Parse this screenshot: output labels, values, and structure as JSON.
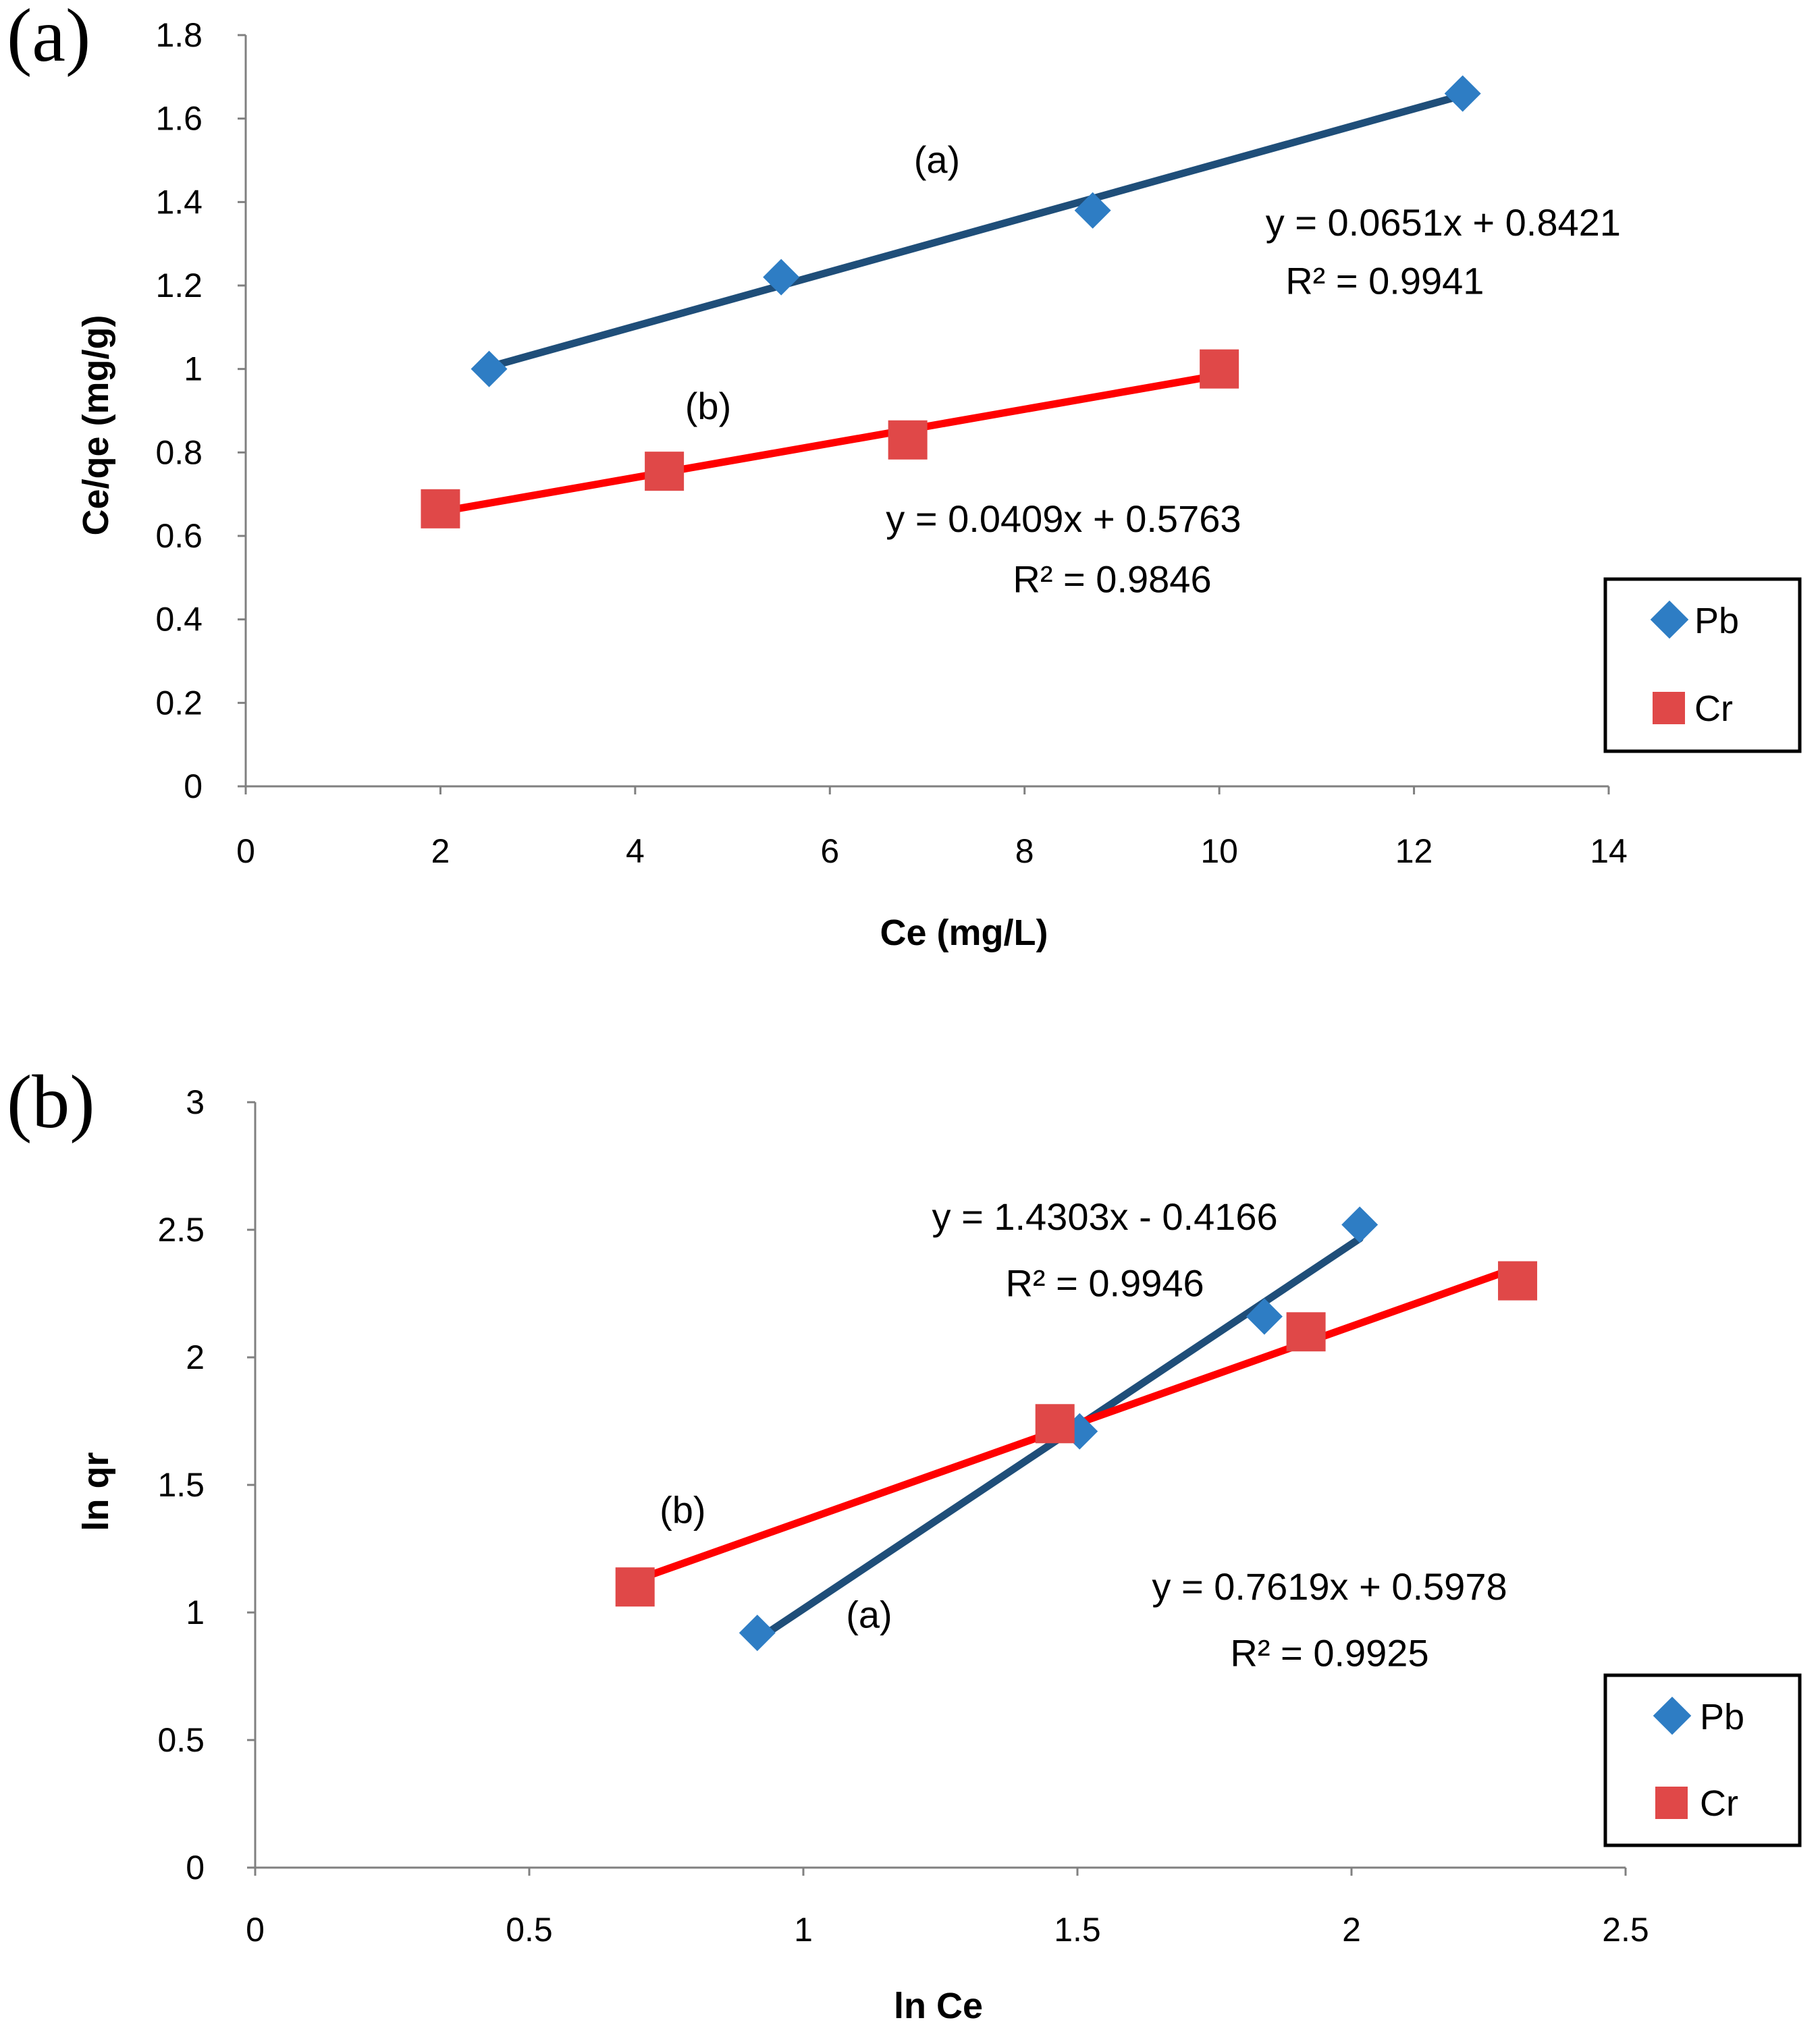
{
  "chart_data": [
    {
      "type": "scatter",
      "panel_label": "(a)",
      "xlabel": "Ce (mg/L)",
      "ylabel": "Ce/qe (mg/g)",
      "xlim": [
        0,
        14
      ],
      "ylim": [
        0,
        1.8
      ],
      "x_ticks": [
        "0",
        "2",
        "4",
        "6",
        "8",
        "10",
        "12",
        "14"
      ],
      "y_ticks": [
        "0",
        "0.2",
        "0.4",
        "0.6",
        "0.8",
        "1",
        "1.2",
        "1.4",
        "1.6",
        "1.8"
      ],
      "legend_position": "right",
      "series": [
        {
          "name": "Pb",
          "marker": "diamond",
          "color": "#2e7dc4",
          "line_color": "#1f4e79",
          "x": [
            2.5,
            5.5,
            8.7,
            12.5
          ],
          "y": [
            1.0,
            1.22,
            1.38,
            1.66
          ],
          "fit": {
            "slope": 0.0651,
            "intercept": 0.8421
          },
          "fit_range": [
            2.5,
            12.5
          ]
        },
        {
          "name": "Cr",
          "marker": "square",
          "color": "#e04848",
          "line_color": "#ff0000",
          "x": [
            2.0,
            4.3,
            6.8,
            10.0
          ],
          "y": [
            0.665,
            0.755,
            0.83,
            1.0
          ],
          "fit": {
            "slope": 0.0409,
            "intercept": 0.5763
          },
          "fit_range": [
            2.0,
            10.0
          ]
        }
      ],
      "annotations": [
        {
          "text": "(a)",
          "x": 7.1,
          "y": 1.47
        },
        {
          "text": "y = 0.0651x + 0.8421",
          "x": 12.3,
          "y": 1.32
        },
        {
          "text": "R² = 0.9941",
          "x": 11.7,
          "y": 1.18
        },
        {
          "text": "(b)",
          "x": 4.75,
          "y": 0.88
        },
        {
          "text": "y = 0.0409x + 0.5763",
          "x": 8.4,
          "y": 0.61
        },
        {
          "text": "R² = 0.9846",
          "x": 8.9,
          "y": 0.465
        }
      ]
    },
    {
      "type": "scatter",
      "panel_label": "(b)",
      "xlabel": "ln Ce",
      "ylabel": "ln qr",
      "xlim": [
        0,
        2.5
      ],
      "ylim": [
        0,
        3
      ],
      "x_ticks": [
        "0",
        "0.5",
        "1",
        "1.5",
        "2",
        "2.5"
      ],
      "y_ticks": [
        "0",
        "0.5",
        "1",
        "1.5",
        "2",
        "2.5",
        "3"
      ],
      "legend_position": "bottom-right",
      "series": [
        {
          "name": "Pb",
          "marker": "diamond",
          "color": "#2e7dc4",
          "line_color": "#1f4e79",
          "x": [
            0.916,
            1.504,
            1.841,
            2.015
          ],
          "y": [
            0.92,
            1.71,
            2.16,
            2.52
          ],
          "fit": {
            "slope": 1.4303,
            "intercept": -0.4166
          },
          "fit_range": [
            0.916,
            2.015
          ]
        },
        {
          "name": "Cr",
          "marker": "square",
          "color": "#e04848",
          "line_color": "#ff0000",
          "x": [
            0.693,
            1.459,
            1.917,
            2.303
          ],
          "y": [
            1.1,
            1.74,
            2.1,
            2.3
          ],
          "fit": {
            "slope": 0.7619,
            "intercept": 0.5978
          },
          "fit_range": [
            0.693,
            2.303
          ]
        }
      ],
      "annotations": [
        {
          "text": "y = 1.4303x - 0.4166",
          "x": 1.55,
          "y": 2.5
        },
        {
          "text": "R² = 0.9946",
          "x": 1.55,
          "y": 2.24
        },
        {
          "text": "(b)",
          "x": 0.78,
          "y": 1.35
        },
        {
          "text": "(a)",
          "x": 1.12,
          "y": 0.94
        },
        {
          "text": "y = 0.7619x + 0.5978",
          "x": 1.96,
          "y": 1.05
        },
        {
          "text": "R² = 0.9925",
          "x": 1.96,
          "y": 0.79
        }
      ]
    }
  ]
}
